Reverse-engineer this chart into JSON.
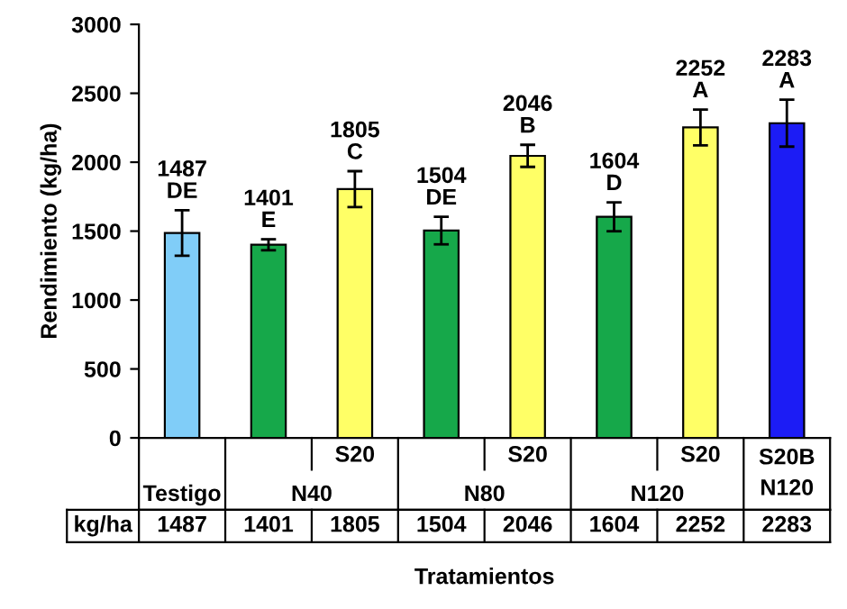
{
  "chart_data": {
    "type": "bar",
    "ylabel": "Rendimiento (kg/ha)",
    "xlabel": "Tratamientos",
    "categories": [
      "Testigo",
      null,
      "S20",
      null,
      "S20",
      null,
      "S20",
      "S20B\nN120"
    ],
    "values": [
      1487,
      1401,
      1805,
      1504,
      2046,
      1604,
      2252,
      2283
    ],
    "colors": [
      "#80cdf8",
      "#16a84a",
      "#ffff66",
      "#16a84a",
      "#ffff66",
      "#16a84a",
      "#ffff66",
      "#1c1cf5"
    ],
    "errors": [
      165,
      40,
      130,
      100,
      80,
      105,
      130,
      170
    ],
    "value_labels": [
      "1487\nDE",
      "1401\nE",
      "1805\nC",
      "1504\nDE",
      "2046\nB",
      "1604\nD",
      "2252\nA",
      "2283\nA"
    ],
    "annotations": [
      "N40",
      "N80",
      "N120",
      "kg/ha",
      "1487",
      "1401",
      "1805",
      "1504",
      "2046",
      "1604",
      "2252",
      "2283"
    ],
    "ylim": [
      0,
      3000
    ],
    "yticks": [
      0,
      500,
      1000,
      1500,
      2000,
      2500,
      3000
    ],
    "grid": false
  }
}
